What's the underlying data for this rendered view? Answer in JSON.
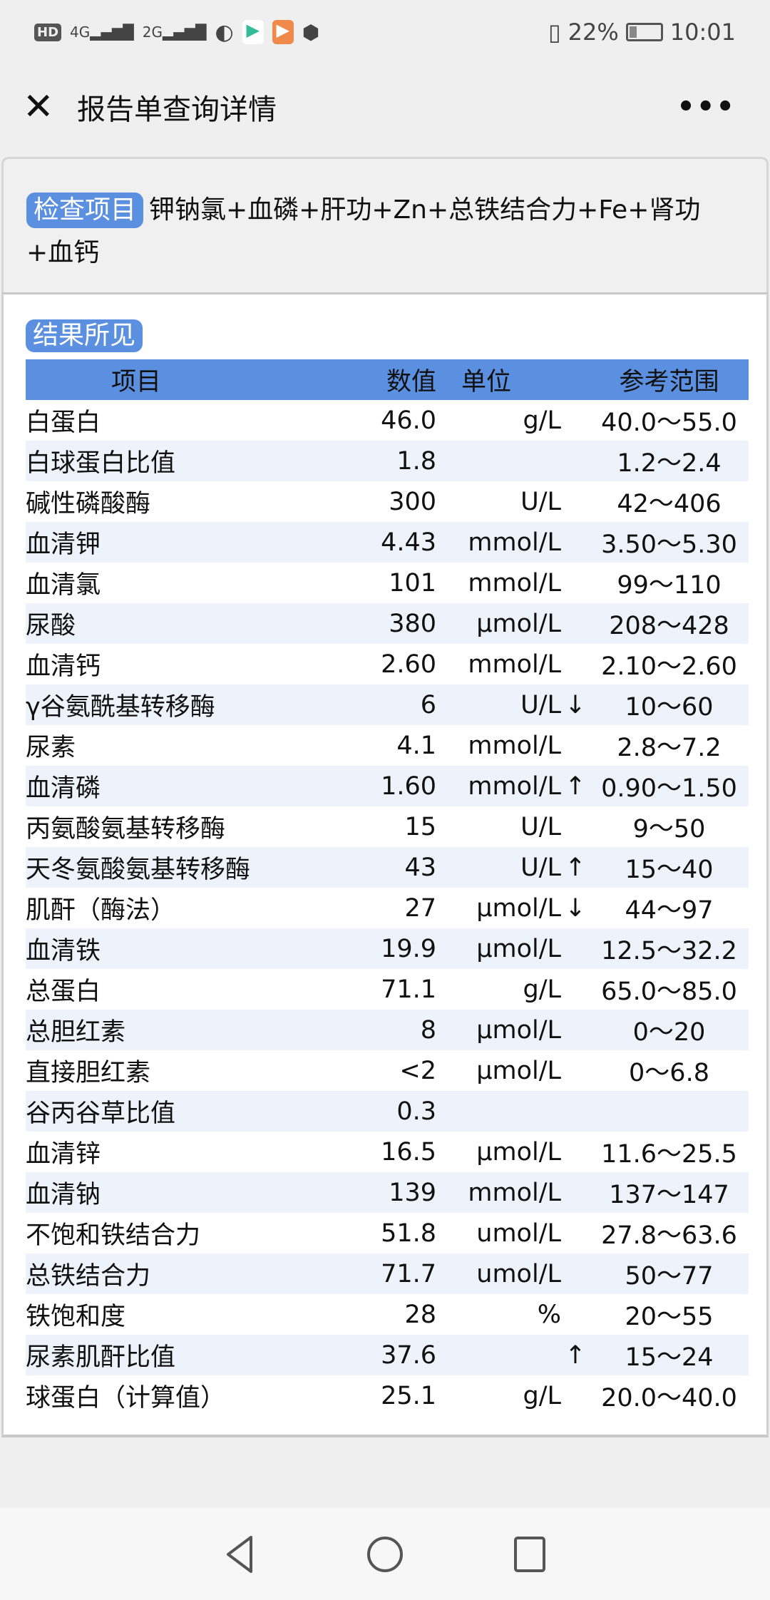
{
  "status_bar": {
    "left_icons": [
      "hd-icon",
      "4g-signal-icon",
      "2g-signal-icon",
      "browser-icon",
      "video-app-icon",
      "play-app-icon",
      "hand-app-icon"
    ],
    "hd": "HD",
    "battery": "22%",
    "time": "10:01"
  },
  "header": {
    "title": "报告单查询详情"
  },
  "exam": {
    "tag": "检查项目",
    "text": "钾钠氯+血磷+肝功+Zn+总铁结合力+Fe+肾功+血钙"
  },
  "results": {
    "tag": "结果所见",
    "columns": [
      "项目",
      "数值",
      "单位",
      "参考范围"
    ],
    "rows": [
      [
        "白蛋白",
        "46.0",
        "g/L",
        "",
        "40.0～55.0"
      ],
      [
        "白球蛋白比值",
        "1.8",
        "",
        "",
        "1.2～2.4"
      ],
      [
        "碱性磷酸酶",
        "300",
        "U/L",
        "",
        "42～406"
      ],
      [
        "血清钾",
        "4.43",
        "mmol/L",
        "",
        "3.50～5.30"
      ],
      [
        "血清氯",
        "101",
        "mmol/L",
        "",
        "99～110"
      ],
      [
        "尿酸",
        "380",
        "μmol/L",
        "",
        "208～428"
      ],
      [
        "血清钙",
        "2.60",
        "mmol/L",
        "",
        "2.10～2.60"
      ],
      [
        "γ谷氨酰基转移酶",
        "6",
        "U/L",
        "↓",
        "10～60"
      ],
      [
        "尿素",
        "4.1",
        "mmol/L",
        "",
        "2.8～7.2"
      ],
      [
        "血清磷",
        "1.60",
        "mmol/L",
        "↑",
        "0.90～1.50"
      ],
      [
        "丙氨酸氨基转移酶",
        "15",
        "U/L",
        "",
        "9～50"
      ],
      [
        "天冬氨酸氨基转移酶",
        "43",
        "U/L",
        "↑",
        "15～40"
      ],
      [
        "肌酐（酶法）",
        "27",
        "μmol/L",
        "↓",
        "44～97"
      ],
      [
        "血清铁",
        "19.9",
        "μmol/L",
        "",
        "12.5～32.2"
      ],
      [
        "总蛋白",
        "71.1",
        "g/L",
        "",
        "65.0～85.0"
      ],
      [
        "总胆红素",
        "8",
        "μmol/L",
        "",
        "0～20"
      ],
      [
        "直接胆红素",
        "<2",
        "μmol/L",
        "",
        "0～6.8"
      ],
      [
        "谷丙谷草比值",
        "0.3",
        "",
        "",
        ""
      ],
      [
        "血清锌",
        "16.5",
        "μmol/L",
        "",
        "11.6～25.5"
      ],
      [
        "血清钠",
        "139",
        "mmol/L",
        "",
        "137～147"
      ],
      [
        "不饱和铁结合力",
        "51.8",
        "umol/L",
        "",
        "27.8～63.6"
      ],
      [
        "总铁结合力",
        "71.7",
        "umol/L",
        "",
        "50～77"
      ],
      [
        "铁饱和度",
        "28",
        "%",
        "",
        "20～55"
      ],
      [
        "尿素肌酐比值",
        "37.6",
        "",
        "↑",
        "15～24"
      ],
      [
        "球蛋白（计算值）",
        "25.1",
        "g/L",
        "",
        "20.0～40.0"
      ]
    ]
  },
  "colors": {
    "accent": "#5b8fe0",
    "row_alt": "#eef3fb"
  }
}
